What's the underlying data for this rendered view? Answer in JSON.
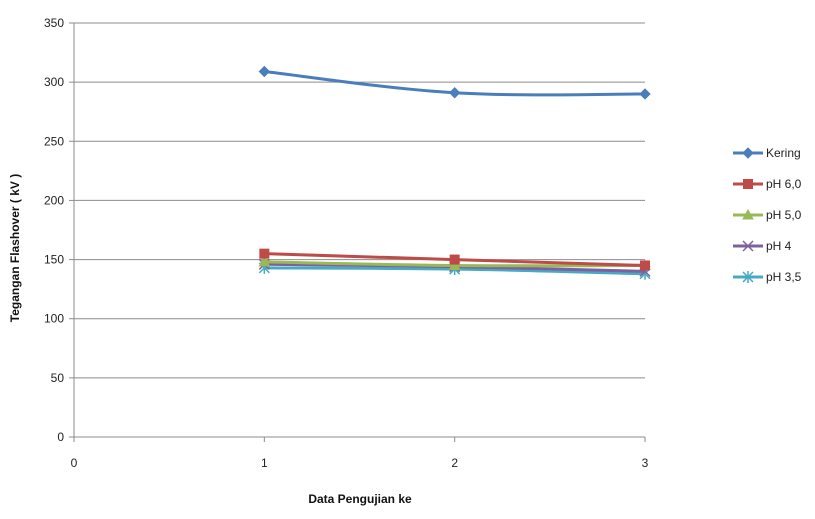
{
  "chart_data": {
    "type": "line",
    "xlabel": "Data Pengujian ke",
    "ylabel": "Tegangan Flashover ( kV )",
    "xlim": [
      0,
      3
    ],
    "ylim": [
      0,
      350
    ],
    "x_ticks": [
      0,
      1,
      2,
      3
    ],
    "y_ticks": [
      0,
      50,
      100,
      150,
      200,
      250,
      300,
      350
    ],
    "grid": "horizontal",
    "legend_position": "right",
    "x": [
      1,
      2,
      3
    ],
    "series": [
      {
        "name": "Kering",
        "values": [
          309,
          291,
          290
        ],
        "color": "#4a7ebb",
        "marker": "diamond"
      },
      {
        "name": "pH 6,0",
        "values": [
          155,
          150,
          145
        ],
        "color": "#be4b48",
        "marker": "square"
      },
      {
        "name": "pH 5,0",
        "values": [
          148,
          145,
          145
        ],
        "color": "#98b954",
        "marker": "triangle"
      },
      {
        "name": "pH 4",
        "values": [
          146,
          144,
          140
        ],
        "color": "#7d60a0",
        "marker": "x"
      },
      {
        "name": "pH 3,5",
        "values": [
          143,
          142,
          138
        ],
        "color": "#46aac5",
        "marker": "star"
      }
    ]
  }
}
